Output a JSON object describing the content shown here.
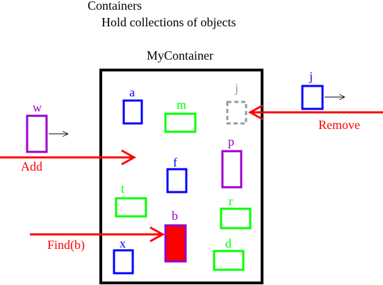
{
  "heading": {
    "title": "Containers",
    "subtitle": "Hold collections of objects"
  },
  "container": {
    "label": "MyContainer"
  },
  "operations": {
    "add": "Add",
    "remove": "Remove",
    "find": "Find(b)"
  },
  "objects": {
    "a": {
      "label": "a",
      "color": "#0000ff"
    },
    "m": {
      "label": "m",
      "color": "#00ff00"
    },
    "j_inside": {
      "label": "j",
      "color": "#999999",
      "state": "removed-placeholder"
    },
    "f": {
      "label": "f",
      "color": "#0000ff"
    },
    "p": {
      "label": "p",
      "color": "#9900cc"
    },
    "t": {
      "label": "t",
      "color": "#00ff00"
    },
    "r": {
      "label": "r",
      "color": "#00ff00"
    },
    "b": {
      "label": "b",
      "color": "#9900cc",
      "fill": "#ff0000",
      "state": "found"
    },
    "x": {
      "label": "x",
      "color": "#0000ff"
    },
    "d": {
      "label": "d",
      "color": "#00ff00"
    },
    "w": {
      "label": "w",
      "color": "#9900cc",
      "state": "being-added"
    },
    "j_outside": {
      "label": "j",
      "color": "#0000ff",
      "state": "removed"
    }
  },
  "colors": {
    "arrow": "#ff0000",
    "container_border": "#000000",
    "text": "#000000"
  }
}
